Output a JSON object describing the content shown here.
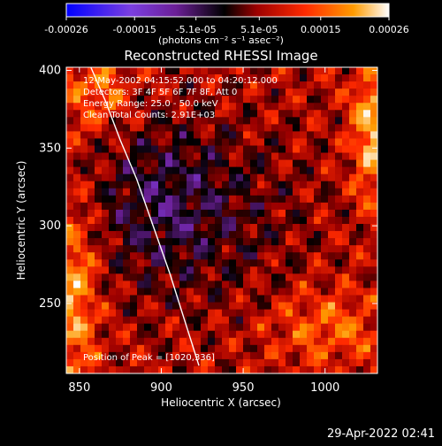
{
  "chart_data": {
    "type": "heatmap",
    "title": "Reconstructed RHESSI Image",
    "xlabel": "Heliocentric X (arcsec)",
    "ylabel": "Heliocentric Y (arcsec)",
    "xlim": [
      842,
      1032
    ],
    "ylim": [
      205,
      402
    ],
    "x_ticks": [
      850,
      900,
      950,
      1000
    ],
    "y_ticks": [
      250,
      300,
      350,
      400
    ],
    "x_tick_labels": [
      "850",
      "900",
      "950",
      "1000"
    ],
    "y_tick_labels": [
      "250",
      "300",
      "350",
      "400"
    ],
    "colorbar": {
      "min": -0.00026,
      "max": 0.00026,
      "tick_values": [
        -0.00026,
        -0.00015,
        -5.1e-05,
        5.1e-05,
        0.00015,
        0.00026
      ],
      "tick_labels": [
        "-0.00026",
        "-0.00015",
        "-5.1e-05",
        "5.1e-05",
        "0.00015",
        "0.00026"
      ],
      "unit_label": "(photons cm⁻² s⁻¹ asec⁻²)",
      "colors": [
        "#0000ff",
        "#7b3fe0",
        "#6b1f96",
        "#000000",
        "#9c0000",
        "#ff2a00",
        "#ff9b00",
        "#ffffff"
      ]
    },
    "annotations": {
      "time_range": "12-May-2002 04:15:52.000 to 04:20:12.000",
      "detectors": "Detectors: 3F 4F 5F 6F 7F 8F, Att 0",
      "energy_range": "Energy Range: 25.0 - 50.0 keV",
      "clean_counts": "Clean    Total Counts: 2.91E+03",
      "peak_position": "Position of Peak = [1020,336]"
    },
    "limb_curve": {
      "x": [
        857,
        866,
        875,
        885,
        895,
        905,
        914,
        923
      ],
      "y": [
        402,
        380,
        355,
        330,
        300,
        270,
        240,
        210
      ]
    },
    "heatmap_description": "Positive emission concentrated around the left and right borders with a bright source near the upper right; negative residual values dominate the central region."
  },
  "footer": {
    "datetime": "29-Apr-2022 02:41"
  }
}
